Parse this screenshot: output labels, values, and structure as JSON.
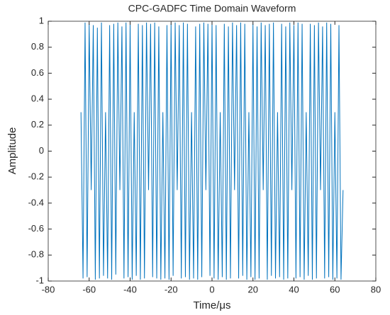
{
  "chart_data": {
    "type": "line",
    "title": "CPC-GADFC Time Domain Waveform",
    "x_label": "Time/μs",
    "y_label": "Amplitude",
    "color": "#0072bd",
    "x": [
      -64,
      -63,
      -62,
      -61,
      -60,
      -59,
      -58,
      -57,
      -56,
      -55,
      -54,
      -53,
      -52,
      -51,
      -50,
      -49,
      -48,
      -47,
      -46,
      -45,
      -44,
      -43,
      -42,
      -41,
      -40,
      -39,
      -38,
      -37,
      -36,
      -35,
      -34,
      -33,
      -32,
      -31,
      -30,
      -29,
      -28,
      -27,
      -26,
      -25,
      -24,
      -23,
      -22,
      -21,
      -20,
      -19,
      -18,
      -17,
      -16,
      -15,
      -14,
      -13,
      -12,
      -11,
      -10,
      -9,
      -8,
      -7,
      -6,
      -5,
      -4,
      -3,
      -2,
      -1,
      0,
      1,
      2,
      3,
      4,
      5,
      6,
      7,
      8,
      9,
      10,
      11,
      12,
      13,
      14,
      15,
      16,
      17,
      18,
      19,
      20,
      21,
      22,
      23,
      24,
      25,
      26,
      27,
      28,
      29,
      30,
      31,
      32,
      33,
      34,
      35,
      36,
      37,
      38,
      39,
      40,
      41,
      42,
      43,
      44,
      45,
      46,
      47,
      48,
      49,
      50,
      51,
      52,
      53,
      54,
      55,
      56,
      57,
      58,
      59,
      60,
      61,
      62,
      63,
      64
    ],
    "values": [
      0.3,
      -0.98,
      0.99,
      -0.97,
      0.98,
      -0.3,
      0.97,
      -0.99,
      0.95,
      -0.98,
      0.99,
      -0.96,
      0.3,
      -0.98,
      0.97,
      -0.99,
      0.98,
      -0.95,
      0.99,
      -0.3,
      0.96,
      -0.98,
      0.99,
      -0.97,
      0.98,
      -0.99,
      0.3,
      -0.96,
      0.98,
      -0.99,
      0.97,
      -0.98,
      0.99,
      -0.3,
      0.98,
      -0.97,
      0.99,
      -0.98,
      0.96,
      -0.99,
      0.3,
      -0.98,
      0.97,
      -0.99,
      0.98,
      -0.96,
      0.99,
      -0.3,
      0.97,
      -0.98,
      0.99,
      -0.97,
      0.98,
      -0.99,
      0.3,
      -0.98,
      0.96,
      -0.99,
      0.98,
      -0.97,
      0.99,
      -0.3,
      0.98,
      -0.96,
      0.99,
      -0.98,
      0.97,
      -0.99,
      0.3,
      -0.97,
      0.98,
      -0.99,
      0.96,
      -0.98,
      0.99,
      -0.3,
      0.97,
      -0.98,
      0.99,
      -0.96,
      0.98,
      -0.99,
      0.3,
      -0.97,
      0.98,
      -0.99,
      0.96,
      -0.98,
      0.99,
      -0.3,
      0.97,
      -0.99,
      0.98,
      -0.96,
      0.99,
      -0.98,
      0.3,
      -0.97,
      0.98,
      -0.99,
      0.96,
      -0.98,
      0.99,
      -0.3,
      0.97,
      -0.98,
      0.99,
      -0.97,
      0.98,
      -0.99,
      0.3,
      -0.96,
      0.98,
      -0.99,
      0.97,
      -0.98,
      0.99,
      -0.3,
      0.96,
      -0.98,
      0.99,
      -0.97,
      0.98,
      -0.99,
      0.3,
      -0.98,
      0.97,
      -0.99,
      -0.3
    ],
    "xlim": [
      -80,
      80
    ],
    "xticks": [
      -80,
      -60,
      -40,
      -20,
      0,
      20,
      40,
      60,
      80
    ],
    "ylim": [
      -1,
      1
    ],
    "yticks": [
      -1,
      -0.8,
      -0.6,
      -0.4,
      -0.2,
      0,
      0.2,
      0.4,
      0.6,
      0.8,
      1
    ],
    "grid": false
  }
}
